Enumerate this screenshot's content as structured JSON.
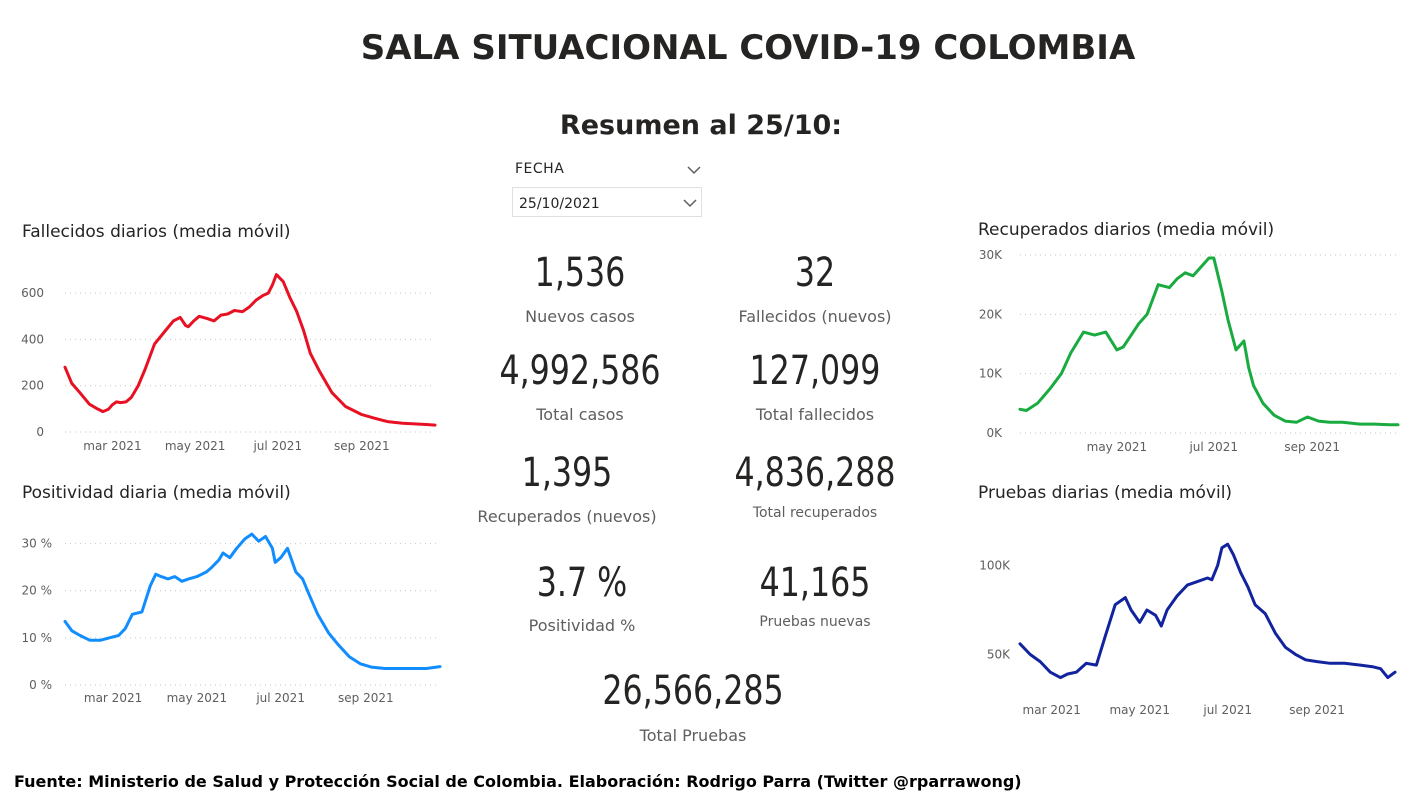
{
  "header": {
    "title": "SALA SITUACIONAL COVID-19 COLOMBIA",
    "subtitle": "Resumen al 25/10:"
  },
  "slicer": {
    "label": "FECHA",
    "value": "25/10/2021"
  },
  "kpis": {
    "nuevos_casos": {
      "value": "1,536",
      "label": "Nuevos casos"
    },
    "fallecidos_nuevos": {
      "value": "32",
      "label": "Fallecidos (nuevos)"
    },
    "total_casos": {
      "value": "4,992,586",
      "label": "Total casos"
    },
    "total_fallecidos": {
      "value": "127,099",
      "label": "Total fallecidos"
    },
    "recuperados_nuevos": {
      "value": "1,395",
      "label": "Recuperados (nuevos)"
    },
    "total_recuperados": {
      "value": "4,836,288",
      "label": "Total recuperados"
    },
    "positividad": {
      "value": "3.7 %",
      "label": "Positividad %"
    },
    "pruebas_nuevas": {
      "value": "41,165",
      "label": "Pruebas nuevas"
    },
    "total_pruebas": {
      "value": "26,566,285",
      "label": "Total Pruebas"
    }
  },
  "footer": {
    "text": "Fuente: Ministerio de Salud y Protección Social de Colombia. Elaboración: Rodrigo Parra (Twitter @rparrawong)"
  },
  "chart_data": [
    {
      "id": "fallecidos",
      "type": "line",
      "title": "Fallecidos diarios (media móvil)",
      "color": "#e81123",
      "ylim": [
        0,
        700
      ],
      "yticks": [
        0,
        200,
        400,
        600
      ],
      "yticklabels": [
        "0",
        "200",
        "400",
        "600"
      ],
      "xlim": [
        "2021-01-25",
        "2021-10-25"
      ],
      "xticks": [
        "2021-03-01",
        "2021-05-01",
        "2021-07-01",
        "2021-09-01"
      ],
      "xticklabels": [
        "mar 2021",
        "may 2021",
        "jul 2021",
        "sep 2021"
      ],
      "grid": true,
      "series": [
        {
          "x": [
            "2021-01-25",
            "2021-01-30",
            "2021-02-05",
            "2021-02-12",
            "2021-02-18",
            "2021-02-22",
            "2021-02-26",
            "2021-03-01",
            "2021-03-04",
            "2021-03-07",
            "2021-03-11",
            "2021-03-15",
            "2021-03-20",
            "2021-03-25",
            "2021-04-01",
            "2021-04-08",
            "2021-04-15",
            "2021-04-20",
            "2021-04-24",
            "2021-04-26",
            "2021-04-30",
            "2021-05-04",
            "2021-05-10",
            "2021-05-15",
            "2021-05-20",
            "2021-05-25",
            "2021-05-30",
            "2021-06-05",
            "2021-06-10",
            "2021-06-15",
            "2021-06-20",
            "2021-06-24",
            "2021-06-27",
            "2021-06-30",
            "2021-07-05",
            "2021-07-10",
            "2021-07-15",
            "2021-07-20",
            "2021-07-25",
            "2021-08-01",
            "2021-08-10",
            "2021-08-20",
            "2021-09-01",
            "2021-09-10",
            "2021-09-20",
            "2021-10-01",
            "2021-10-10",
            "2021-10-20",
            "2021-10-25"
          ],
          "y": [
            280,
            210,
            170,
            120,
            100,
            88,
            98,
            118,
            130,
            127,
            130,
            150,
            200,
            270,
            380,
            430,
            480,
            495,
            460,
            455,
            480,
            500,
            490,
            480,
            505,
            510,
            525,
            520,
            540,
            570,
            590,
            600,
            635,
            680,
            650,
            580,
            520,
            440,
            340,
            260,
            170,
            110,
            75,
            60,
            45,
            38,
            35,
            32,
            30
          ]
        }
      ]
    },
    {
      "id": "positividad",
      "type": "line",
      "title": "Positividad diaria (media móvil)",
      "color": "#118dff",
      "ylim": [
        0,
        35
      ],
      "yticks": [
        0,
        10,
        20,
        30
      ],
      "yticklabels": [
        "0 %",
        "10 %",
        "20 %",
        "30 %"
      ],
      "xlim": [
        "2021-01-25",
        "2021-10-25"
      ],
      "xticks": [
        "2021-03-01",
        "2021-05-01",
        "2021-07-01",
        "2021-09-01"
      ],
      "xticklabels": [
        "mar 2021",
        "may 2021",
        "jul 2021",
        "sep 2021"
      ],
      "grid": true,
      "series": [
        {
          "x": [
            "2021-01-25",
            "2021-01-30",
            "2021-02-05",
            "2021-02-12",
            "2021-02-20",
            "2021-02-26",
            "2021-03-05",
            "2021-03-10",
            "2021-03-15",
            "2021-03-22",
            "2021-03-28",
            "2021-04-01",
            "2021-04-05",
            "2021-04-10",
            "2021-04-15",
            "2021-04-20",
            "2021-04-25",
            "2021-05-01",
            "2021-05-08",
            "2021-05-12",
            "2021-05-17",
            "2021-05-20",
            "2021-05-25",
            "2021-05-30",
            "2021-06-05",
            "2021-06-10",
            "2021-06-15",
            "2021-06-20",
            "2021-06-25",
            "2021-06-27",
            "2021-07-01",
            "2021-07-06",
            "2021-07-12",
            "2021-07-17",
            "2021-07-22",
            "2021-07-28",
            "2021-08-05",
            "2021-08-12",
            "2021-08-20",
            "2021-08-28",
            "2021-09-05",
            "2021-09-15",
            "2021-10-01",
            "2021-10-15",
            "2021-10-25"
          ],
          "y": [
            13.5,
            11.5,
            10.5,
            9.5,
            9.5,
            10,
            10.5,
            12,
            15,
            15.5,
            21,
            23.5,
            23,
            22.5,
            23,
            22,
            22.5,
            23,
            24,
            25,
            26.5,
            28,
            27,
            29,
            31,
            32,
            30.5,
            31.5,
            29,
            26,
            27,
            29,
            24,
            22.5,
            19,
            15,
            11,
            8.5,
            6,
            4.5,
            3.8,
            3.5,
            3.5,
            3.5,
            3.9
          ]
        }
      ]
    },
    {
      "id": "recuperados",
      "type": "line",
      "title": "Recuperados diarios (media móvil)",
      "color": "#1aab40",
      "ylim": [
        0,
        30000
      ],
      "yticks": [
        0,
        10000,
        20000,
        30000
      ],
      "yticklabels": [
        "0K",
        "10K",
        "20K",
        "30K"
      ],
      "xlim": [
        "2021-03-01",
        "2021-10-25"
      ],
      "xticks": [
        "2021-05-01",
        "2021-07-01",
        "2021-09-01"
      ],
      "xticklabels": [
        "may 2021",
        "jul 2021",
        "sep 2021"
      ],
      "grid": true,
      "series": [
        {
          "x": [
            "2021-03-01",
            "2021-03-05",
            "2021-03-12",
            "2021-03-20",
            "2021-03-27",
            "2021-04-02",
            "2021-04-10",
            "2021-04-17",
            "2021-04-24",
            "2021-05-01",
            "2021-05-05",
            "2021-05-10",
            "2021-05-15",
            "2021-05-20",
            "2021-05-27",
            "2021-06-03",
            "2021-06-08",
            "2021-06-13",
            "2021-06-18",
            "2021-06-23",
            "2021-06-28",
            "2021-07-01",
            "2021-07-06",
            "2021-07-10",
            "2021-07-15",
            "2021-07-20",
            "2021-07-23",
            "2021-07-26",
            "2021-08-01",
            "2021-08-08",
            "2021-08-15",
            "2021-08-22",
            "2021-08-29",
            "2021-09-05",
            "2021-09-12",
            "2021-09-20",
            "2021-10-01",
            "2021-10-10",
            "2021-10-20",
            "2021-10-25"
          ],
          "y": [
            4000,
            3800,
            5000,
            7500,
            10000,
            13500,
            17000,
            16500,
            17000,
            14000,
            14500,
            16500,
            18500,
            20000,
            25000,
            24500,
            26000,
            27000,
            26500,
            28000,
            29500,
            29500,
            24000,
            19000,
            14000,
            15500,
            11000,
            8000,
            5000,
            3000,
            2000,
            1800,
            2700,
            2000,
            1800,
            1800,
            1500,
            1500,
            1400,
            1400
          ]
        }
      ]
    },
    {
      "id": "pruebas",
      "type": "line",
      "title": "Pruebas diarias (media móvil)",
      "color": "#12239e",
      "ylim": [
        30000,
        120000
      ],
      "yticks": [
        50000,
        100000
      ],
      "yticklabels": [
        "50K",
        "100K"
      ],
      "xlim": [
        "2021-02-07",
        "2021-10-25"
      ],
      "xticks": [
        "2021-03-01",
        "2021-05-01",
        "2021-07-01",
        "2021-09-01"
      ],
      "xticklabels": [
        "mar 2021",
        "may 2021",
        "jul 2021",
        "sep 2021"
      ],
      "grid": false,
      "series": [
        {
          "x": [
            "2021-02-07",
            "2021-02-14",
            "2021-02-21",
            "2021-02-28",
            "2021-03-07",
            "2021-03-12",
            "2021-03-18",
            "2021-03-25",
            "2021-04-01",
            "2021-04-07",
            "2021-04-14",
            "2021-04-21",
            "2021-04-25",
            "2021-05-01",
            "2021-05-06",
            "2021-05-12",
            "2021-05-16",
            "2021-05-20",
            "2021-05-27",
            "2021-06-03",
            "2021-06-10",
            "2021-06-17",
            "2021-06-20",
            "2021-06-24",
            "2021-06-27",
            "2021-07-01",
            "2021-07-05",
            "2021-07-10",
            "2021-07-15",
            "2021-07-20",
            "2021-07-27",
            "2021-08-03",
            "2021-08-10",
            "2021-08-17",
            "2021-08-24",
            "2021-09-01",
            "2021-09-10",
            "2021-09-20",
            "2021-10-01",
            "2021-10-10",
            "2021-10-15",
            "2021-10-20",
            "2021-10-25"
          ],
          "y": [
            56000,
            50000,
            46000,
            40000,
            37000,
            39000,
            40000,
            45000,
            44000,
            60000,
            78000,
            82000,
            75000,
            68000,
            75000,
            72000,
            66000,
            75000,
            83000,
            89000,
            91000,
            93000,
            92000,
            100000,
            110000,
            112000,
            106000,
            96000,
            88000,
            78000,
            73000,
            62000,
            54000,
            50000,
            47000,
            46000,
            45000,
            45000,
            44000,
            43000,
            42000,
            37000,
            40000
          ]
        }
      ]
    }
  ]
}
